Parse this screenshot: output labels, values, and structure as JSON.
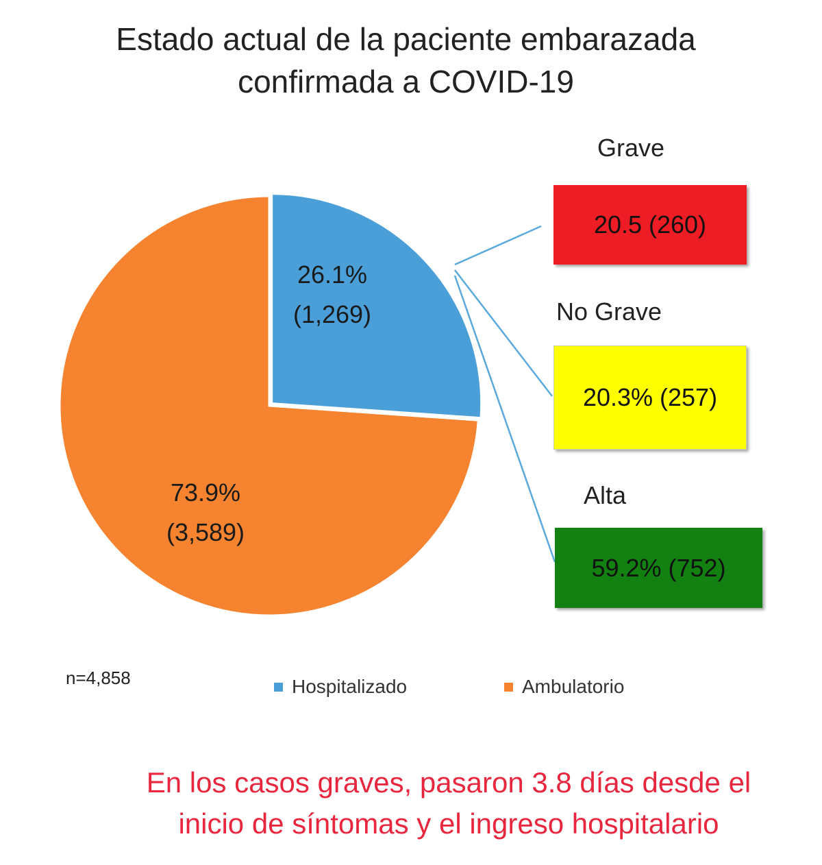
{
  "title_lines": [
    "Estado actual de la paciente embarazada",
    "confirmada a COVID-19"
  ],
  "chart_data": {
    "type": "pie",
    "title": "Estado actual de la paciente embarazada confirmada a COVID-19",
    "slices": [
      {
        "name": "Hospitalizado",
        "percent": 26.1,
        "count": 1269,
        "label_pct": "26.1%",
        "label_count": "(1,269)",
        "color": "#4a9fd8"
      },
      {
        "name": "Ambulatorio",
        "percent": 73.9,
        "count": 3589,
        "label_pct": "73.9%",
        "label_count": "(3,589)",
        "color": "#f5832f"
      }
    ],
    "breakdown_of": "Hospitalizado",
    "breakdown": [
      {
        "category": "Grave",
        "value_text": "20.5 (260)",
        "percent": 20.5,
        "count": 260,
        "color": "#ee1c24"
      },
      {
        "category": "No Grave",
        "value_text": "20.3% (257)",
        "percent": 20.3,
        "count": 257,
        "color": "#ffff00"
      },
      {
        "category": "Alta",
        "value_text": "59.2% (752)",
        "percent": 59.2,
        "count": 752,
        "color": "#138012"
      }
    ],
    "legend": [
      "Hospitalizado",
      "Ambulatorio"
    ],
    "legend_position": "bottom",
    "n_label": "n=4,858"
  },
  "footnote_lines": [
    "En los casos graves, pasaron 3.8  días desde el",
    "inicio de síntomas y el ingreso hospitalario"
  ],
  "colors": {
    "connector": "#5aa9dc",
    "footnote": "#e8273f"
  }
}
